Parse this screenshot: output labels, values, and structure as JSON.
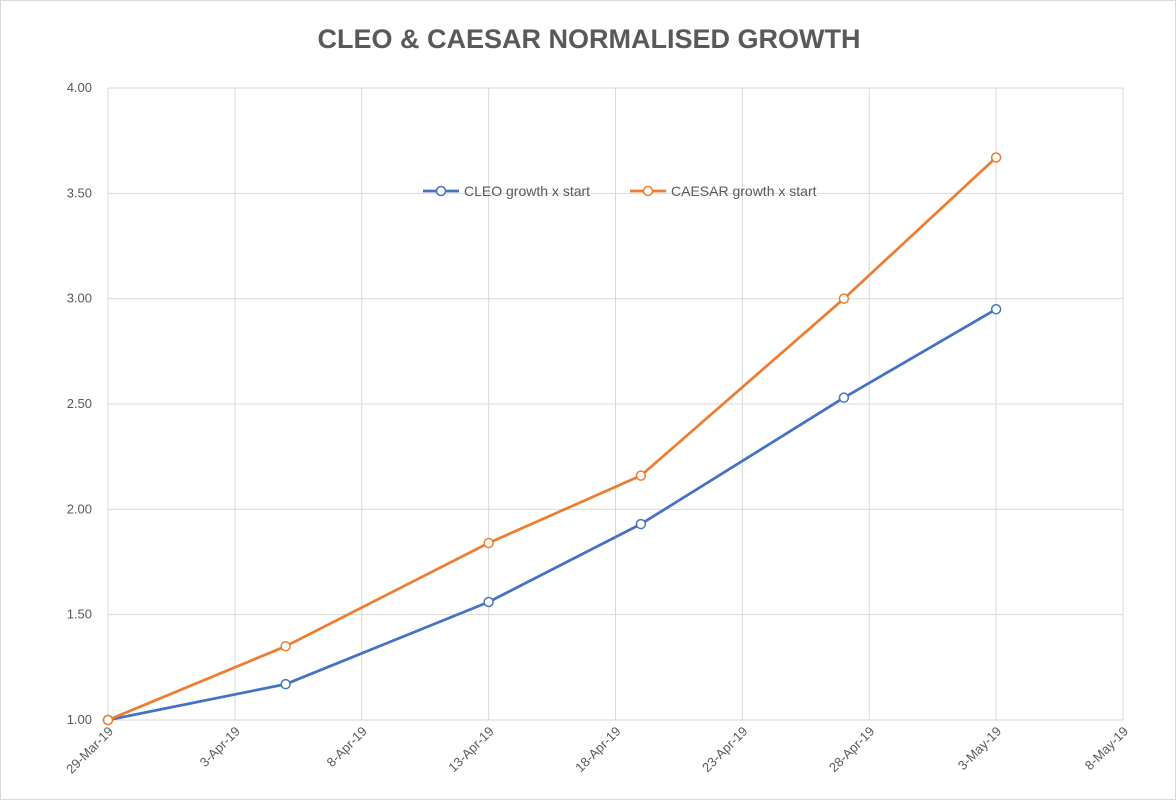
{
  "chart_data": {
    "type": "line",
    "title": "CLEO & CAESAR NORMALISED GROWTH",
    "xlabel": "",
    "ylabel": "",
    "x_axis_type": "date",
    "xlim": [
      "2019-03-29",
      "2019-05-08"
    ],
    "ylim": [
      1.0,
      4.0
    ],
    "x_ticks": [
      "2019-03-29",
      "2019-04-03",
      "2019-04-08",
      "2019-04-13",
      "2019-04-18",
      "2019-04-23",
      "2019-04-28",
      "2019-05-03",
      "2019-05-08"
    ],
    "x_tick_labels": [
      "29-Mar-19",
      "3-Apr-19",
      "8-Apr-19",
      "13-Apr-19",
      "18-Apr-19",
      "23-Apr-19",
      "28-Apr-19",
      "3-May-19",
      "8-May-19"
    ],
    "y_ticks": [
      1.0,
      1.5,
      2.0,
      2.5,
      3.0,
      3.5,
      4.0
    ],
    "y_tick_labels": [
      "1.00",
      "1.50",
      "2.00",
      "2.50",
      "3.00",
      "3.50",
      "4.00"
    ],
    "grid": true,
    "legend_position": "top-center (inside plot area)",
    "x": [
      "2019-03-29",
      "2019-04-05",
      "2019-04-13",
      "2019-04-19",
      "2019-04-27",
      "2019-05-03"
    ],
    "series": [
      {
        "name": "CLEO growth x start",
        "color": "#4472C4",
        "marker": "open-circle",
        "values": [
          1.0,
          1.17,
          1.56,
          1.93,
          2.53,
          2.95
        ]
      },
      {
        "name": "CAESAR growth x start",
        "color": "#ED7D31",
        "marker": "open-circle",
        "values": [
          1.0,
          1.35,
          1.84,
          2.16,
          3.0,
          3.67
        ]
      }
    ]
  },
  "colors": {
    "gridline": "#d9d9d9",
    "axis_text": "#595959",
    "background": "#ffffff"
  }
}
